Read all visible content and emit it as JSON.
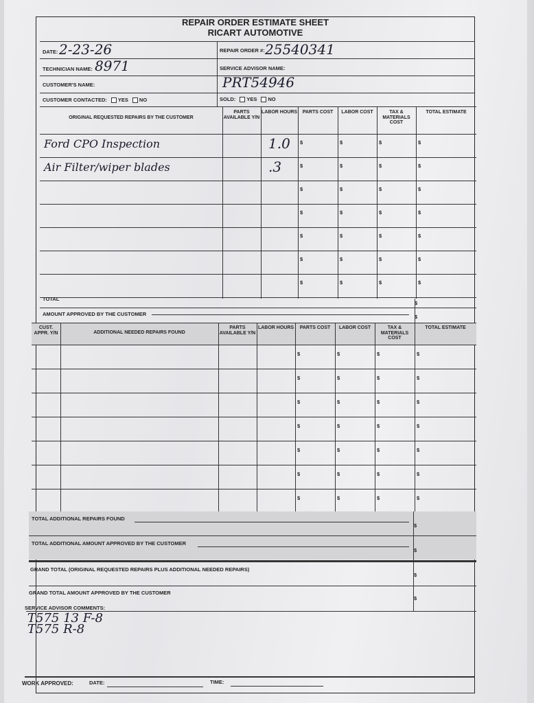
{
  "header": {
    "title": "REPAIR ORDER ESTIMATE SHEET",
    "subtitle": "RICART AUTOMOTIVE"
  },
  "info": {
    "date_label": "DATE:",
    "date_value": "2-23-26",
    "repair_order_label": "REPAIR ORDER #:",
    "repair_order_value": "25540341",
    "technician_label": "TECHNICIAN NAME:",
    "technician_value": "8971",
    "service_advisor_label": "SERVICE ADVISOR NAME:",
    "customer_label": "CUSTOMER'S NAME:",
    "customer_value": "PRT54946",
    "contacted_label": "CUSTOMER CONTACTED:",
    "sold_label": "SOLD:",
    "yes": "YES",
    "no": "NO"
  },
  "table1": {
    "headers": [
      "ORIGINAL REQUESTED REPAIRS BY THE CUSTOMER",
      "PARTS AVAILABLE Y/N",
      "LABOR HOURS",
      "PARTS COST",
      "LABOR COST",
      "TAX & MATERIALS COST",
      "TOTAL ESTIMATE"
    ],
    "rows": [
      {
        "desc": "Ford CPO Inspection",
        "hours": "1.0"
      },
      {
        "desc": "Air Filter/wiper blades",
        "hours": ".3"
      },
      {
        "desc": "",
        "hours": ""
      },
      {
        "desc": "",
        "hours": ""
      },
      {
        "desc": "",
        "hours": ""
      },
      {
        "desc": "",
        "hours": ""
      },
      {
        "desc": "",
        "hours": ""
      }
    ],
    "total_label": "TOTAL",
    "approved_label": "AMOUNT APPROVED BY THE CUSTOMER"
  },
  "table2": {
    "headers": [
      "CUST. APPR. Y/N",
      "ADDITIONAL NEEDED REPAIRS FOUND",
      "PARTS AVAILABLE Y/N",
      "LABOR HOURS",
      "PARTS COST",
      "LABOR COST",
      "TAX & MATERIALS COST",
      "TOTAL ESTIMATE"
    ],
    "row_count": 7
  },
  "totals": {
    "additional_found": "TOTAL ADDITIONAL REPAIRS FOUND",
    "additional_approved": "TOTAL ADDITIONAL AMOUNT APPROVED BY THE CUSTOMER",
    "grand_total": "GRAND TOTAL (Original requested repairs plus additional needed repairs)",
    "grand_approved": "GRAND TOTAL AMOUNT APPROVED BY THE CUSTOMER"
  },
  "comments": {
    "label": "SERVICE ADVISOR COMMENTS:",
    "line1": "T575  13 F-8",
    "line2": "T575     R-8"
  },
  "footer": {
    "work_approved": "WORK APPROVED:",
    "date": "DATE:",
    "time": "TIME:"
  },
  "currency": "$"
}
